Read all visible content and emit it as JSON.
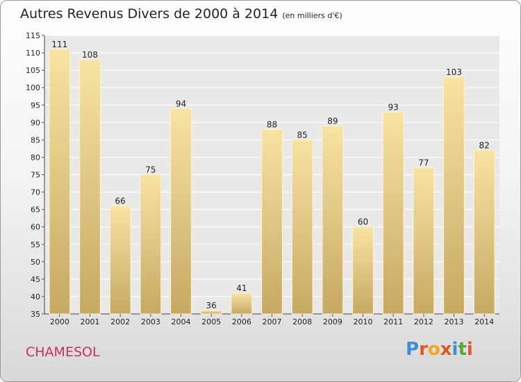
{
  "chart_data": {
    "type": "bar",
    "title": "Autres Revenus Divers de 2000 à 2014",
    "unit_note": "(en milliers d'€)",
    "categories": [
      "2000",
      "2001",
      "2002",
      "2003",
      "2004",
      "2005",
      "2006",
      "2007",
      "2008",
      "2009",
      "2010",
      "2011",
      "2012",
      "2013",
      "2014"
    ],
    "values": [
      111,
      108,
      66,
      75,
      94,
      36,
      41,
      88,
      85,
      89,
      60,
      93,
      77,
      103,
      82
    ],
    "ylim": [
      35,
      115
    ],
    "yticks": [
      35,
      40,
      45,
      50,
      55,
      60,
      65,
      70,
      75,
      80,
      85,
      90,
      95,
      100,
      105,
      110,
      115
    ],
    "grid": true,
    "bar_color": "#ecd28b"
  },
  "footer": {
    "commune": "CHAMESOL",
    "logo": "Proxiti",
    "logo_colors": [
      "#3a8fd6",
      "#e0562a",
      "#f0a81e",
      "#e0562a",
      "#3a8fd6",
      "#5aa832",
      "#e0562a"
    ]
  }
}
